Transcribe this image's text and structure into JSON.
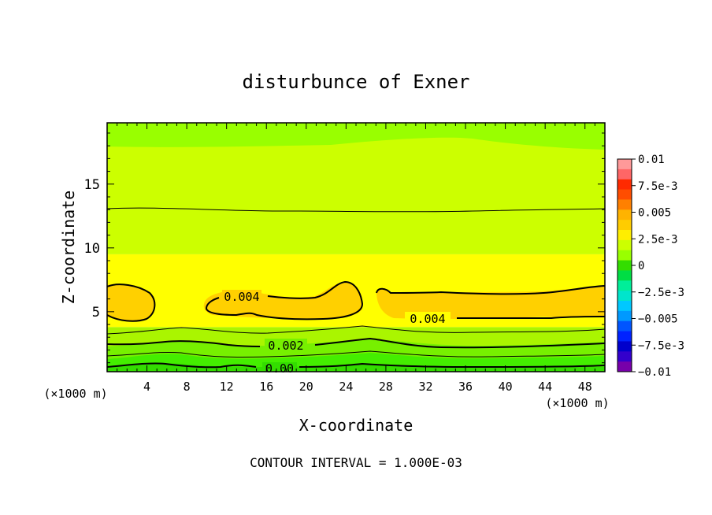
{
  "chart_data": {
    "type": "heatmap",
    "title": "disturbunce of Exner",
    "xlabel": "X-coordinate",
    "ylabel": "Z-coordinate",
    "x_unit_left": "(×1000 m)",
    "x_unit_right": "(×1000 m)",
    "xlim": [
      0,
      50
    ],
    "ylim": [
      0.3,
      19.8
    ],
    "x_ticks": [
      4,
      8,
      12,
      16,
      20,
      24,
      28,
      32,
      36,
      40,
      44,
      48
    ],
    "y_ticks": [
      5,
      10,
      15
    ],
    "contour_interval_text": "CONTOUR INTERVAL = 1.000E-03",
    "contour_labels": [
      "0.004",
      "0.004",
      "0.002",
      "0.00"
    ],
    "colorbar": {
      "range": [
        -0.01,
        0.01
      ],
      "tick_labels": [
        "0.01",
        "7.5e-3",
        "0.005",
        "2.5e-3",
        "0",
        "−2.5e-3",
        "−0.005",
        "−7.5e-3",
        "−0.01"
      ],
      "colors": [
        "#ff9999",
        "#ff6666",
        "#ff2a00",
        "#ff4d00",
        "#ff8000",
        "#ffb300",
        "#ffcc00",
        "#ffee00",
        "#ccff00",
        "#99ff00",
        "#33dd00",
        "#00dd44",
        "#00ee99",
        "#00e5cc",
        "#00c8ff",
        "#0099ff",
        "#0055ff",
        "#0022ff",
        "#0000cc",
        "#3300cc",
        "#7700aa"
      ]
    },
    "field_layers": [
      {
        "z_range": [
          0.3,
          1.0
        ],
        "value": -0.0005,
        "color": "#33dd00"
      },
      {
        "z_range": [
          1.0,
          2.0
        ],
        "value": 0.0005,
        "color": "#44ee00"
      },
      {
        "z_range": [
          2.0,
          2.8
        ],
        "value": 0.0015,
        "color": "#77f000"
      },
      {
        "z_range": [
          2.8,
          3.8
        ],
        "value": 0.0025,
        "color": "#aaf500"
      },
      {
        "z_range": [
          3.8,
          9.5
        ],
        "value": 0.0035,
        "color": "#ffff00"
      },
      {
        "z_range": [
          9.5,
          19.8
        ],
        "value": 0.0025,
        "color": "#ccff00"
      }
    ],
    "max_regions": [
      {
        "x_range": [
          0,
          4.5
        ],
        "z_range": [
          4.5,
          7.0
        ],
        "value": 0.0045,
        "color": "#ffd000"
      },
      {
        "x_range": [
          10,
          25
        ],
        "z_range": [
          4.5,
          7.2
        ],
        "value": 0.0045,
        "color": "#ffd000"
      },
      {
        "x_range": [
          27,
          50
        ],
        "z_range": [
          4.3,
          6.9
        ],
        "value": 0.0045,
        "color": "#ffd000"
      }
    ]
  }
}
